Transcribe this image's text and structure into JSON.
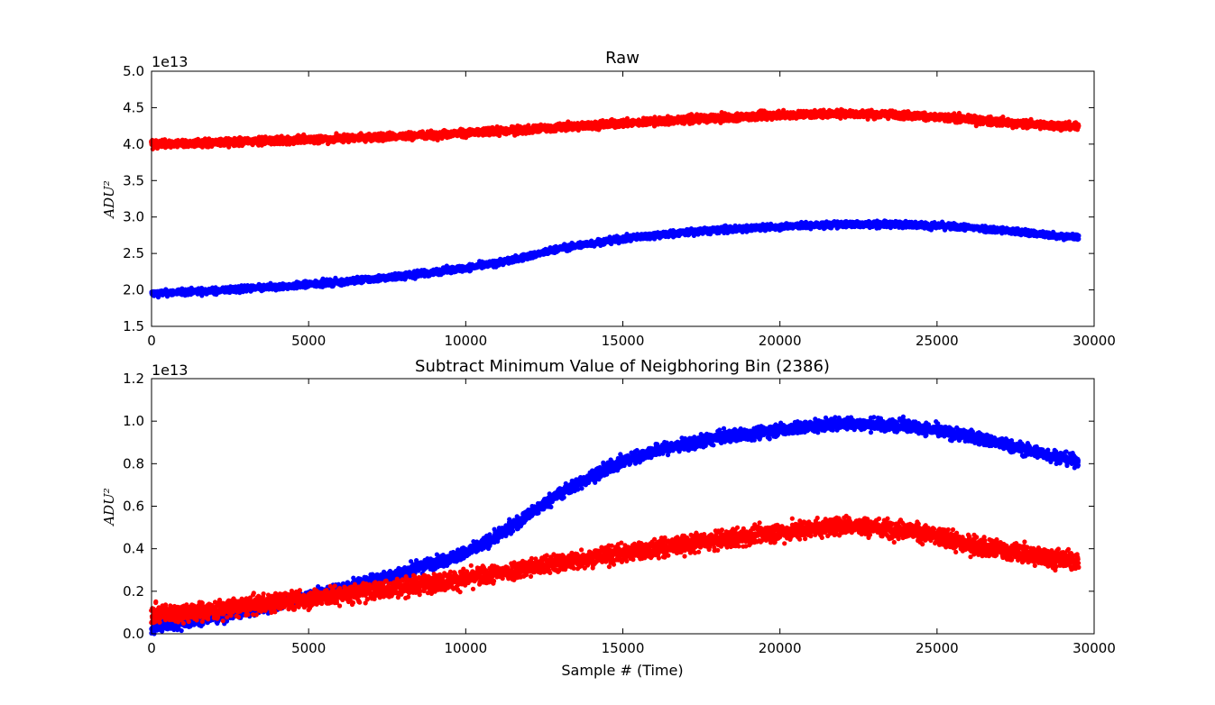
{
  "colors": {
    "series_a": "#0000ff",
    "series_b": "#ff0000",
    "axes": "#000000",
    "background": "#ffffff"
  },
  "chart_data": [
    {
      "type": "scatter",
      "title": "Raw",
      "xlabel": "",
      "ylabel": "ADU²",
      "offset_label": "1e13",
      "xlim": [
        0,
        30000
      ],
      "ylim": [
        1.5,
        5.0
      ],
      "xticks": [
        "0",
        "5000",
        "10000",
        "15000",
        "20000",
        "25000",
        "30000"
      ],
      "yticks": [
        "1.5",
        "2.0",
        "2.5",
        "3.0",
        "3.5",
        "4.0",
        "4.5",
        "5.0"
      ],
      "grid": false,
      "legend": "none",
      "series": [
        {
          "color": "#0000ff",
          "marker": "dot",
          "band_halfwidth": 0.045,
          "x": [
            0,
            2000,
            4000,
            6000,
            8000,
            10000,
            11000,
            12000,
            13000,
            14000,
            15000,
            16000,
            17000,
            18000,
            20000,
            22000,
            24000,
            26000,
            28000,
            29500
          ],
          "y": [
            1.95,
            1.99,
            2.04,
            2.11,
            2.19,
            2.3,
            2.37,
            2.46,
            2.57,
            2.64,
            2.7,
            2.75,
            2.79,
            2.82,
            2.87,
            2.9,
            2.9,
            2.86,
            2.78,
            2.72
          ]
        },
        {
          "color": "#ff0000",
          "marker": "dot",
          "band_halfwidth": 0.055,
          "x": [
            0,
            2000,
            4000,
            6000,
            8000,
            10000,
            12000,
            14000,
            16000,
            18000,
            20000,
            22000,
            24000,
            26000,
            28000,
            29500
          ],
          "y": [
            4.0,
            4.02,
            4.05,
            4.08,
            4.11,
            4.15,
            4.2,
            4.26,
            4.31,
            4.36,
            4.4,
            4.42,
            4.4,
            4.34,
            4.27,
            4.24
          ]
        }
      ]
    },
    {
      "type": "scatter",
      "title": "Subtract Minimum Value of Neigbhoring Bin (2386)",
      "xlabel": "Sample # (Time)",
      "ylabel": "ADU²",
      "offset_label": "1e13",
      "xlim": [
        0,
        30000
      ],
      "ylim": [
        0.0,
        1.2
      ],
      "xticks": [
        "0",
        "5000",
        "10000",
        "15000",
        "20000",
        "25000",
        "30000"
      ],
      "yticks": [
        "0.0",
        "0.2",
        "0.4",
        "0.6",
        "0.8",
        "1.0",
        "1.2"
      ],
      "grid": false,
      "legend": "none",
      "series": [
        {
          "color": "#0000ff",
          "marker": "dot",
          "band_halfwidth": 0.03,
          "x": [
            0,
            2000,
            4000,
            6000,
            8000,
            10000,
            11000,
            12000,
            13000,
            14000,
            15000,
            16000,
            17000,
            18000,
            20000,
            22000,
            24000,
            26000,
            28000,
            29500
          ],
          "y": [
            0.03,
            0.08,
            0.14,
            0.21,
            0.29,
            0.38,
            0.46,
            0.56,
            0.66,
            0.74,
            0.81,
            0.86,
            0.89,
            0.92,
            0.96,
            0.99,
            0.98,
            0.93,
            0.86,
            0.81
          ]
        },
        {
          "color": "#ff0000",
          "marker": "dot",
          "band_halfwidth": 0.045,
          "x": [
            0,
            2000,
            4000,
            6000,
            8000,
            10000,
            12000,
            14000,
            16000,
            18000,
            20000,
            22000,
            24000,
            26000,
            28000,
            29500
          ],
          "y": [
            0.09,
            0.11,
            0.15,
            0.18,
            0.22,
            0.26,
            0.31,
            0.36,
            0.4,
            0.44,
            0.48,
            0.51,
            0.49,
            0.42,
            0.37,
            0.34
          ]
        }
      ]
    }
  ]
}
